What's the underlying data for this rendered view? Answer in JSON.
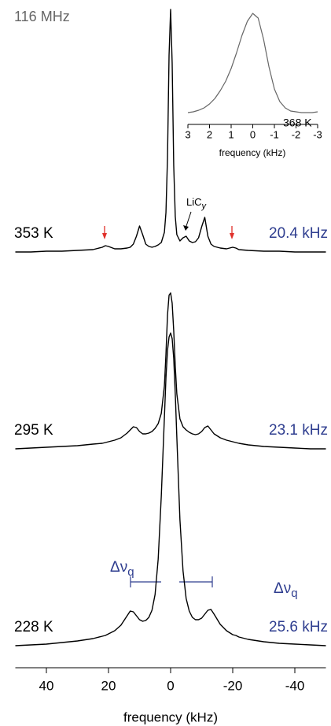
{
  "chart_data": [
    {
      "type": "line",
      "title": "116 MHz",
      "xlabel": "frequency (kHz)",
      "xlim": [
        50,
        -50
      ],
      "xticks": [
        40,
        20,
        0,
        -20,
        -40
      ],
      "x": [
        50,
        45,
        40,
        35,
        30,
        25,
        22,
        21,
        20,
        18,
        16,
        14,
        13,
        12,
        11,
        10,
        9,
        8,
        7,
        6,
        5,
        4,
        3,
        2,
        1.5,
        1,
        0.5,
        0,
        -0.5,
        -1,
        -1.5,
        -2,
        -3,
        -4,
        -5,
        -6,
        -7,
        -8,
        -9,
        -10,
        -11,
        -12,
        -13,
        -14,
        -16,
        -18,
        -20,
        -21,
        -22,
        -25,
        -30,
        -35,
        -40,
        -45,
        -50
      ],
      "label_color": "#2e3d8f",
      "series": [
        {
          "name": "353 K",
          "label": "20.4 kHz",
          "color": "#000000",
          "values": [
            0,
            0,
            1,
            1,
            2,
            3,
            6,
            8,
            7,
            4,
            4,
            5,
            6,
            10,
            20,
            33,
            22,
            10,
            7,
            6,
            7,
            9,
            12,
            25,
            50,
            120,
            250,
            308,
            240,
            110,
            45,
            22,
            14,
            18,
            20,
            14,
            12,
            13,
            18,
            32,
            44,
            20,
            10,
            7,
            5,
            4,
            6,
            5,
            3,
            2,
            1,
            1,
            0,
            0,
            0
          ]
        },
        {
          "name": "295 K",
          "label": "23.1 kHz",
          "color": "#000000",
          "values": [
            0,
            1,
            2,
            3,
            4,
            6,
            7,
            8,
            9,
            11,
            14,
            20,
            24,
            28,
            27,
            22,
            19,
            19,
            20,
            22,
            26,
            32,
            45,
            80,
            120,
            170,
            195,
            198,
            185,
            150,
            105,
            70,
            38,
            28,
            24,
            21,
            19,
            18,
            19,
            22,
            27,
            29,
            24,
            19,
            14,
            11,
            9,
            8,
            7,
            5,
            3,
            2,
            1,
            0,
            0
          ]
        },
        {
          "name": "228 K",
          "label": "25.6 kHz",
          "color": "#000000",
          "values": [
            0,
            1,
            2,
            4,
            6,
            9,
            12,
            13,
            15,
            19,
            26,
            38,
            44,
            43,
            38,
            33,
            31,
            32,
            36,
            45,
            65,
            110,
            190,
            290,
            340,
            375,
            392,
            397,
            390,
            365,
            320,
            265,
            160,
            95,
            60,
            44,
            36,
            33,
            33,
            35,
            40,
            45,
            46,
            40,
            27,
            19,
            14,
            13,
            11,
            8,
            5,
            3,
            2,
            1,
            0
          ]
        }
      ],
      "annotations": {
        "licy": {
          "text": "LiC",
          "subscript": "y"
        },
        "splitting": {
          "symbol": "Δν",
          "subscript": "q"
        },
        "arrow_color": "#e0302a"
      }
    },
    {
      "type": "line",
      "xlabel": "frequency (kHz)",
      "xlim": [
        3,
        -3
      ],
      "xticks": [
        3,
        2,
        1,
        0,
        -1,
        -2,
        -3
      ],
      "x": [
        3,
        2.75,
        2.5,
        2.25,
        2,
        1.75,
        1.5,
        1.25,
        1,
        0.75,
        0.5,
        0.25,
        0,
        -0.25,
        -0.5,
        -0.75,
        -1,
        -1.25,
        -1.5,
        -1.75,
        -2,
        -2.25,
        -2.5,
        -2.75,
        -3
      ],
      "series": [
        {
          "name": "368 K",
          "color": "#666666",
          "values": [
            2,
            3,
            5,
            8,
            13,
            20,
            30,
            42,
            58,
            78,
            100,
            118,
            128,
            122,
            95,
            60,
            32,
            16,
            8,
            4,
            3,
            2,
            2,
            2,
            3
          ]
        }
      ]
    }
  ]
}
